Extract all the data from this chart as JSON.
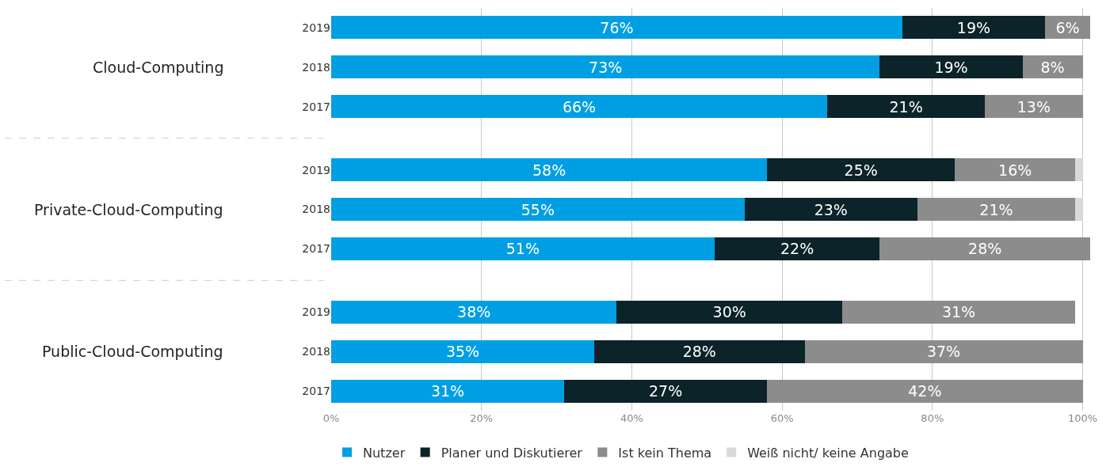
{
  "chart_data": {
    "type": "bar",
    "orientation": "horizontal",
    "stacked": true,
    "categories": [
      "2019",
      "2018",
      "2017",
      "2019",
      "2018",
      "2017",
      "2019",
      "2018",
      "2017"
    ],
    "annotations": [
      "Cloud-Computing",
      "Private-Cloud-Computing",
      "Public-Cloud-Computing"
    ],
    "series": [
      {
        "name": "Nutzer",
        "color": "#009fe3",
        "values": [
          76,
          73,
          66,
          58,
          55,
          51,
          38,
          35,
          31
        ],
        "value_labels": [
          "76%",
          "73%",
          "66%",
          "58%",
          "55%",
          "51%",
          "38%",
          "35%",
          "31%"
        ]
      },
      {
        "name": "Planer und Diskutierer",
        "color": "#0b2329",
        "values": [
          19,
          19,
          21,
          25,
          23,
          22,
          30,
          28,
          27
        ],
        "value_labels": [
          "19%",
          "19%",
          "21%",
          "25%",
          "23%",
          "22%",
          "30%",
          "28%",
          "27%"
        ]
      },
      {
        "name": "Ist kein Thema",
        "color": "#8c8c8c",
        "values": [
          6,
          8,
          13,
          16,
          21,
          28,
          31,
          37,
          42
        ],
        "value_labels": [
          "6%",
          "8%",
          "13%",
          "16%",
          "21%",
          "28%",
          "31%",
          "37%",
          "42%"
        ]
      },
      {
        "name": "Weiß nicht/ keine Angabe",
        "color": "#d9d9d9",
        "values": [
          null,
          null,
          null,
          1,
          1,
          null,
          null,
          null,
          null
        ],
        "value_labels": [
          null,
          null,
          null,
          null,
          null,
          null,
          null,
          null,
          null
        ]
      }
    ],
    "xlim": [
      0,
      101
    ],
    "xticks": [
      {
        "value": 0,
        "label": "0%"
      },
      {
        "value": 20,
        "label": "20%"
      },
      {
        "value": 40,
        "label": "40%"
      },
      {
        "value": 60,
        "label": "60%"
      },
      {
        "value": 80,
        "label": "80%"
      },
      {
        "value": 100,
        "label": "100%"
      }
    ],
    "grid": "x",
    "legend": "bottom"
  }
}
